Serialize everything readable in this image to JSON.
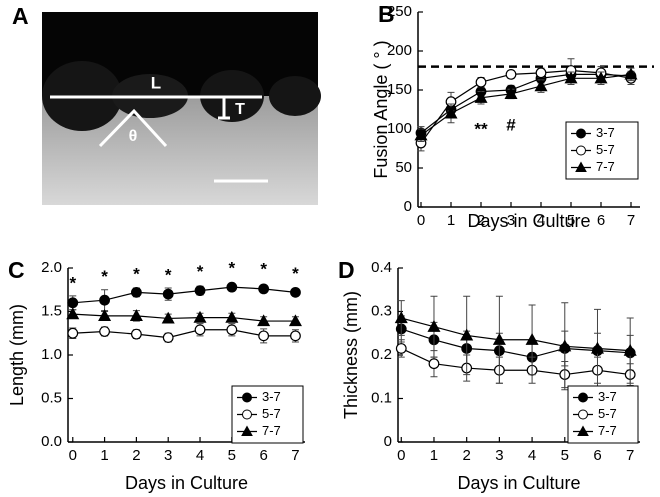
{
  "panel_a": {
    "label": "A",
    "dimension_labels": {
      "length": "L",
      "thickness": "T",
      "angle": "θ"
    }
  },
  "chart_data": [
    {
      "type": "line",
      "panel_label": "B",
      "xlabel": "Days in Culture",
      "ylabel": "Fusion Angle ( ° )",
      "x": [
        0,
        1,
        2,
        3,
        4,
        5,
        6,
        7
      ],
      "xlim": [
        -0.1,
        7.3
      ],
      "xticks": [
        0,
        1,
        2,
        3,
        4,
        5,
        6,
        7
      ],
      "ylim": [
        0,
        250
      ],
      "yticks": [
        0,
        50,
        100,
        150,
        200,
        250
      ],
      "reference_line": 180,
      "legend": "lower right",
      "annotations": [
        {
          "text": "**",
          "x": 2
        },
        {
          "text": "#",
          "x": 3
        }
      ],
      "series": [
        {
          "name": "3-7",
          "color": "#000000",
          "marker": "circle",
          "filled": true,
          "values": [
            95,
            125,
            148,
            150,
            165,
            170,
            170,
            168
          ],
          "errors": [
            8,
            8,
            6,
            6,
            6,
            8,
            6,
            6
          ]
        },
        {
          "name": "5-7",
          "color": "#000000",
          "marker": "circle",
          "filled": false,
          "values": [
            82,
            135,
            160,
            170,
            172,
            175,
            172,
            165
          ],
          "errors": [
            10,
            12,
            6,
            5,
            6,
            15,
            8,
            8
          ]
        },
        {
          "name": "7-7",
          "color": "#000000",
          "marker": "triangle",
          "filled": true,
          "values": [
            92,
            120,
            140,
            145,
            155,
            165,
            165,
            170
          ],
          "errors": [
            8,
            12,
            8,
            6,
            8,
            8,
            8,
            8
          ]
        }
      ]
    },
    {
      "type": "line",
      "panel_label": "C",
      "xlabel": "Days in Culture",
      "ylabel": "Length (mm)",
      "x": [
        0,
        1,
        2,
        3,
        4,
        5,
        6,
        7
      ],
      "xlim": [
        -0.15,
        7.3
      ],
      "xticks": [
        0,
        1,
        2,
        3,
        4,
        5,
        6,
        7
      ],
      "ylim": [
        0,
        2
      ],
      "yticks": [
        {
          "value": 0,
          "label": "0.0"
        },
        0.5,
        {
          "value": 1,
          "label": "1.0"
        },
        1.5,
        {
          "value": 2,
          "label": "2.0"
        }
      ],
      "legend": "lower right",
      "annotations": [
        {
          "text": "*",
          "x": 0
        },
        {
          "text": "*",
          "x": 1
        },
        {
          "text": "*",
          "x": 2
        },
        {
          "text": "*",
          "x": 3
        },
        {
          "text": "*",
          "x": 4
        },
        {
          "text": "*",
          "x": 5
        },
        {
          "text": "*",
          "x": 6
        },
        {
          "text": "*",
          "x": 7
        }
      ],
      "series": [
        {
          "name": "3-7",
          "color": "#000000",
          "marker": "circle",
          "filled": true,
          "values": [
            1.6,
            1.63,
            1.72,
            1.7,
            1.74,
            1.78,
            1.76,
            1.72
          ],
          "errors": [
            0.08,
            0.12,
            0.05,
            0.07,
            0.05,
            0.03,
            0.04,
            0.03
          ]
        },
        {
          "name": "5-7",
          "color": "#000000",
          "marker": "circle",
          "filled": false,
          "values": [
            1.25,
            1.27,
            1.24,
            1.2,
            1.29,
            1.29,
            1.22,
            1.22
          ],
          "errors": [
            0.06,
            0.05,
            0.05,
            0.05,
            0.07,
            0.07,
            0.08,
            0.07
          ]
        },
        {
          "name": "7-7",
          "color": "#000000",
          "marker": "triangle",
          "filled": true,
          "values": [
            1.47,
            1.45,
            1.45,
            1.42,
            1.43,
            1.43,
            1.39,
            1.39
          ],
          "errors": [
            0.05,
            0.05,
            0.06,
            0.05,
            0.05,
            0.05,
            0.05,
            0.05
          ]
        }
      ]
    },
    {
      "type": "line",
      "panel_label": "D",
      "xlabel": "Days in Culture",
      "ylabel": "Thickness (mm)",
      "x": [
        0,
        1,
        2,
        3,
        4,
        5,
        6,
        7
      ],
      "xlim": [
        -0.1,
        7.3
      ],
      "xticks": [
        0,
        1,
        2,
        3,
        4,
        5,
        6,
        7
      ],
      "ylim": [
        0,
        0.4
      ],
      "yticks": [
        0,
        0.1,
        0.2,
        0.3,
        0.4
      ],
      "legend": "lower right",
      "series": [
        {
          "name": "3-7",
          "color": "#000000",
          "marker": "circle",
          "filled": true,
          "values": [
            0.26,
            0.235,
            0.215,
            0.21,
            0.195,
            0.215,
            0.21,
            0.205
          ],
          "errors": [
            0.03,
            0.04,
            0.04,
            0.04,
            0.04,
            0.04,
            0.04,
            0.04
          ]
        },
        {
          "name": "5-7",
          "color": "#000000",
          "marker": "circle",
          "filled": false,
          "values": [
            0.215,
            0.18,
            0.17,
            0.165,
            0.165,
            0.155,
            0.165,
            0.155
          ],
          "errors": [
            0.02,
            0.03,
            0.03,
            0.03,
            0.03,
            0.03,
            0.03,
            0.025
          ]
        },
        {
          "name": "7-7",
          "color": "#000000",
          "marker": "triangle",
          "filled": true,
          "values": [
            0.285,
            0.265,
            0.245,
            0.235,
            0.235,
            0.22,
            0.215,
            0.21
          ],
          "errors": [
            0.04,
            0.07,
            0.09,
            0.1,
            0.08,
            0.1,
            0.09,
            0.075
          ]
        }
      ]
    }
  ]
}
